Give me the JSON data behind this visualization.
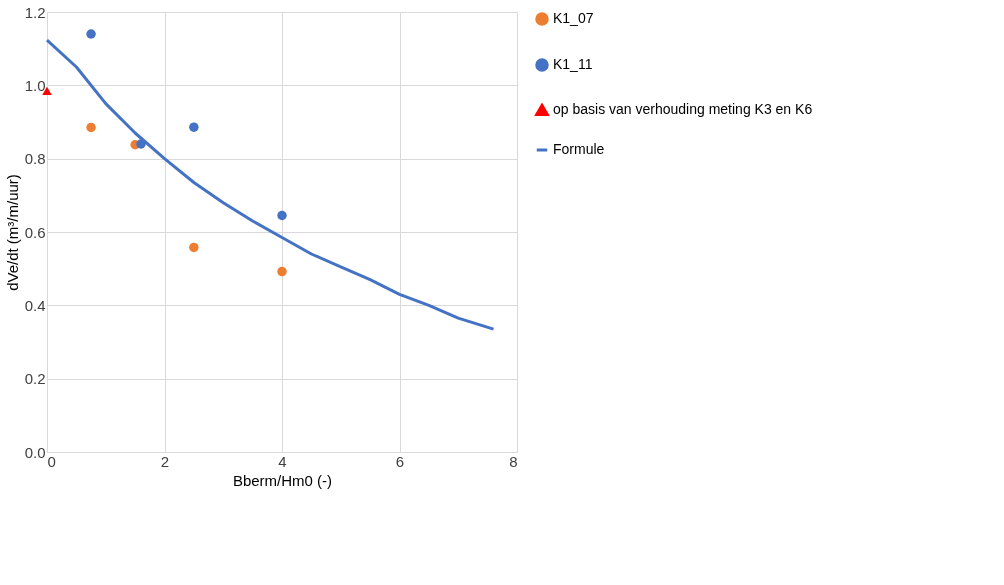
{
  "chart_data": {
    "type": "scatter",
    "xlabel": "Bberm/Hm0  (-)",
    "ylabel": "dVe/dt (m³/m/uur)",
    "xlim": [
      0,
      8
    ],
    "xticks": [
      0,
      2,
      4,
      6,
      8
    ],
    "ylim": [
      0,
      1.2
    ],
    "yticks": [
      {
        "value": 0,
        "label": "0.0"
      },
      0.2,
      0.4,
      0.6,
      0.8,
      {
        "value": 1,
        "label": "1.0"
      },
      1.2
    ],
    "grid": true,
    "legend": "right",
    "series": [
      {
        "name": "K1_07",
        "marker": "circle",
        "color": "#ed7d31",
        "x": [
          0.75,
          1.5,
          2.5,
          4.0
        ],
        "values": [
          0.885,
          0.838,
          0.558,
          0.492
        ]
      },
      {
        "name": "K1_11",
        "marker": "circle",
        "color": "#4472c4",
        "x": [
          0.75,
          1.6,
          2.5,
          4.0
        ],
        "values": [
          1.14,
          0.84,
          0.886,
          0.645
        ]
      },
      {
        "name": "op basis van verhouding meting K3 en K6",
        "marker": "triangle",
        "color": "#ff0000",
        "x": [
          0
        ],
        "values": [
          0.985
        ]
      },
      {
        "name": "Formule",
        "type": "line",
        "color": "#4472c4",
        "x": [
          0,
          0.5,
          1,
          1.5,
          2,
          2.5,
          3,
          3.5,
          4,
          4.5,
          5,
          5.5,
          6,
          6.5,
          7,
          7.6
        ],
        "values": [
          1.123,
          1.05,
          0.95,
          0.87,
          0.8,
          0.735,
          0.68,
          0.63,
          0.585,
          0.54,
          0.505,
          0.47,
          0.43,
          0.4,
          0.365,
          0.335
        ]
      }
    ]
  }
}
